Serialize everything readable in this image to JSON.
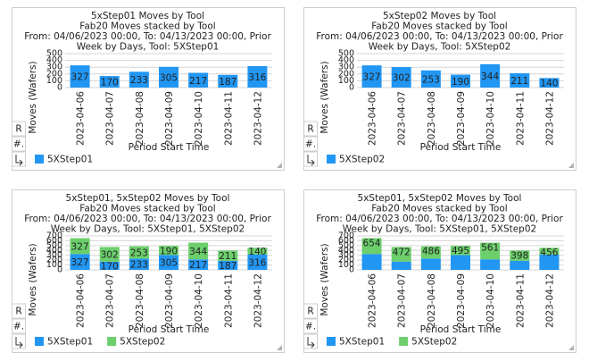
{
  "buttons": [
    "R",
    "#."
  ],
  "chart_data": [
    {
      "type": "bar",
      "stacked": false,
      "show_value_labels": true,
      "title": "5xStep01 Moves by Tool",
      "subtitle": "Fab20 Moves stacked by Tool",
      "description": [
        "From: 04/06/2023 00:00, To: 04/13/2023 00:00, Prior",
        "Week by Days, Tool: 5XStep01"
      ],
      "y_label": "Moves (Wafers)",
      "x_label": "Period Start Time",
      "categories": [
        "2023-04-06",
        "2023-04-07",
        "2023-04-08",
        "2023-04-09",
        "2023-04-10",
        "2023-04-11",
        "2023-04-12"
      ],
      "series": [
        {
          "name": "5XStep01",
          "color": "#2196f3",
          "values": [
            327,
            170,
            233,
            305,
            217,
            187,
            316
          ]
        }
      ],
      "ylim": [
        0,
        500
      ],
      "yticks": [
        0,
        100,
        200,
        300,
        400,
        500
      ],
      "grid": true
    },
    {
      "type": "bar",
      "stacked": false,
      "show_value_labels": true,
      "title": "5xStep02 Moves by Tool",
      "subtitle": "Fab20 Moves stacked by Tool",
      "description": [
        "From: 04/06/2023 00:00, To: 04/13/2023 00:00, Prior",
        "Week by Days, Tool: 5XStep02"
      ],
      "y_label": "Moves (Wafers)",
      "x_label": "Period Start Time",
      "categories": [
        "2023-04-06",
        "2023-04-07",
        "2023-04-08",
        "2023-04-09",
        "2023-04-10",
        "2023-04-11",
        "2023-04-12"
      ],
      "series": [
        {
          "name": "5XStep02",
          "color": "#2196f3",
          "values": [
            327,
            302,
            253,
            190,
            344,
            211,
            140
          ]
        }
      ],
      "ylim": [
        0,
        500
      ],
      "yticks": [
        0,
        100,
        200,
        300,
        400,
        500
      ],
      "grid": true
    },
    {
      "type": "bar",
      "stacked": true,
      "show_value_labels": true,
      "title": "5xStep01, 5xStep02 Moves by Tool",
      "subtitle": "Fab20 Moves stacked by Tool",
      "description": [
        "From: 04/06/2023 00:00, To: 04/13/2023 00:00, Prior",
        "Week by Days, Tool: 5XStep01, 5XStep02"
      ],
      "y_label": "Moves (Wafers)",
      "x_label": "Period Start Time",
      "categories": [
        "2023-04-06",
        "2023-04-07",
        "2023-04-08",
        "2023-04-09",
        "2023-04-10",
        "2023-04-11",
        "2023-04-12"
      ],
      "series": [
        {
          "name": "5XStep01",
          "color": "#2196f3",
          "values": [
            327,
            170,
            233,
            305,
            217,
            187,
            316
          ]
        },
        {
          "name": "5XStep02",
          "color": "#6ccf6c",
          "values": [
            327,
            302,
            253,
            190,
            344,
            211,
            140
          ]
        }
      ],
      "ylim": [
        0,
        700
      ],
      "yticks": [
        0,
        100,
        200,
        300,
        400,
        500,
        600,
        700
      ],
      "grid": true
    },
    {
      "type": "bar",
      "stacked": true,
      "show_value_labels": false,
      "title": "5xStep01, 5xStep02 Moves by Tool",
      "subtitle": "Fab20 Moves stacked by Tool",
      "description": [
        "From: 04/06/2023 00:00, To: 04/13/2023 00:00, Prior",
        "Week by Days, Tool: 5XStep01, 5XStep02"
      ],
      "y_label": "Moves (Wafers)",
      "x_label": "Period Start Time",
      "categories": [
        "2023-04-06",
        "2023-04-07",
        "2023-04-08",
        "2023-04-09",
        "2023-04-10",
        "2023-04-11",
        "2023-04-12"
      ],
      "series": [
        {
          "name": "5XStep01",
          "color": "#2196f3",
          "values": [
            327,
            170,
            233,
            305,
            217,
            187,
            316
          ]
        },
        {
          "name": "5XStep02",
          "color": "#6ccf6c",
          "values": [
            327,
            302,
            253,
            190,
            344,
            211,
            140
          ]
        }
      ],
      "totals": [
        654,
        472,
        486,
        495,
        561,
        398,
        456
      ],
      "ylim": [
        0,
        700
      ],
      "yticks": [
        0,
        100,
        200,
        300,
        400,
        500,
        600,
        700
      ],
      "grid": true
    }
  ]
}
